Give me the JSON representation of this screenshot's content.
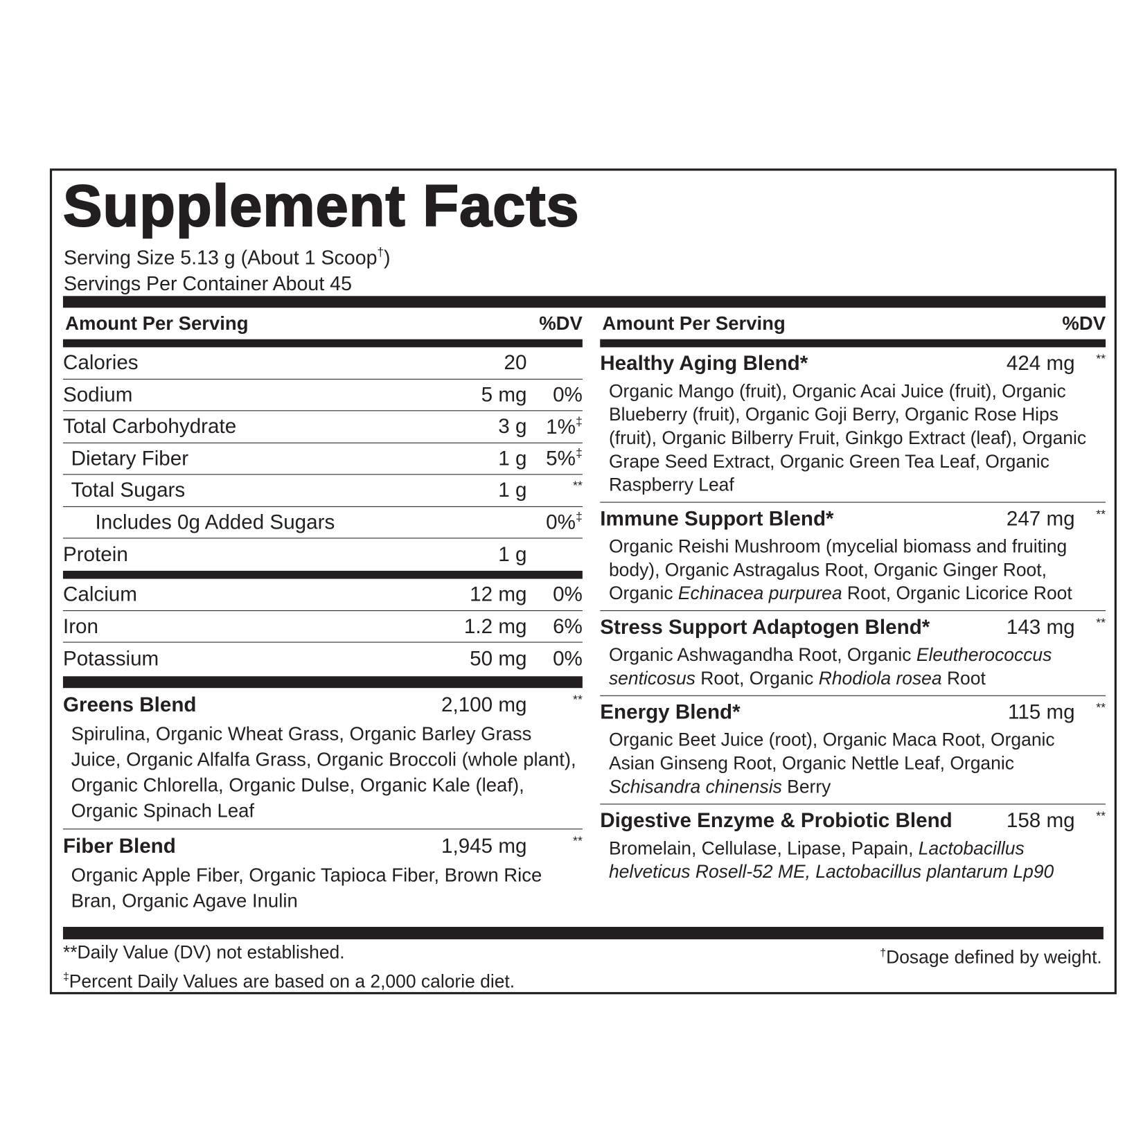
{
  "title": "Supplement Facts",
  "serving": [
    [
      {
        "text": "Serving Size 5.13 g (About 1 Scoop"
      },
      {
        "text": "†",
        "style": "sup"
      },
      {
        "text": ")"
      }
    ],
    [
      {
        "text": "Servings Per Container About 45"
      }
    ]
  ],
  "left": {
    "header": {
      "amount": "Amount Per Serving",
      "dv": "%DV"
    },
    "nutrients": [
      {
        "name": "Calories",
        "amount": "20"
      },
      {
        "name": "Sodium",
        "amount": "5 mg",
        "dv": [
          {
            "text": "0%"
          }
        ]
      },
      {
        "name": "Total Carbohydrate",
        "amount": "3 g",
        "dv": [
          {
            "text": "1%"
          },
          {
            "text": "‡",
            "style": "sup"
          }
        ]
      },
      {
        "name": "Dietary Fiber",
        "indent": 1,
        "amount": "1 g",
        "dv": [
          {
            "text": "5%"
          },
          {
            "text": "‡",
            "style": "sup"
          }
        ]
      },
      {
        "name": "Total Sugars",
        "indent": 1,
        "amount": "1 g",
        "dv": [
          {
            "text": "**",
            "style": "sup"
          }
        ]
      },
      {
        "name": "Includes 0g Added Sugars",
        "indent": 2,
        "dv": [
          {
            "text": "0%"
          },
          {
            "text": "‡",
            "style": "sup"
          }
        ]
      },
      {
        "name": "Protein",
        "amount": "1 g"
      }
    ],
    "minerals": [
      {
        "name": "Calcium",
        "amount": "12 mg",
        "dv": [
          {
            "text": "0%"
          }
        ]
      },
      {
        "name": "Iron",
        "amount": "1.2 mg",
        "dv": [
          {
            "text": "6%"
          }
        ]
      },
      {
        "name": "Potassium",
        "amount": "50 mg",
        "dv": [
          {
            "text": "0%"
          }
        ]
      }
    ],
    "blends": [
      {
        "name": "Greens Blend",
        "amount": "2,100 mg",
        "dv": [
          {
            "text": "**",
            "style": "sup"
          }
        ],
        "ingredients": [
          {
            "text": "Spirulina, Organic Wheat Grass, Organic Barley Grass Juice, Organic Alfalfa Grass, Organic Broccoli (whole plant), Organic Chlorella, Organic Dulse, Organic Kale (leaf), Organic Spinach Leaf"
          }
        ]
      },
      {
        "name": "Fiber Blend",
        "amount": "1,945 mg",
        "dv": [
          {
            "text": "**",
            "style": "sup"
          }
        ],
        "ingredients": [
          {
            "text": "Organic Apple Fiber, Organic Tapioca Fiber, Brown Rice Bran, Organic Agave Inulin"
          }
        ]
      }
    ]
  },
  "right": {
    "header": {
      "amount": "Amount Per Serving",
      "dv": "%DV"
    },
    "blends": [
      {
        "name": "Healthy Aging Blend*",
        "amount": "424 mg",
        "dv": [
          {
            "text": "**",
            "style": "sup"
          }
        ],
        "ingredients": [
          {
            "text": "Organic Mango (fruit), Organic Acai Juice (fruit), Organic Blueberry (fruit), Organic Goji Berry, Organic Rose Hips (fruit), Organic Bilberry Fruit, Ginkgo Extract (leaf), Organic Grape Seed Extract, Organic Green Tea Leaf, Organic Raspberry Leaf"
          }
        ]
      },
      {
        "name": "Immune Support Blend*",
        "amount": "247 mg",
        "dv": [
          {
            "text": "**",
            "style": "sup"
          }
        ],
        "ingredients": [
          {
            "text": "Organic Reishi Mushroom (mycelial biomass and fruiting body), Organic Astragalus Root, Organic Ginger Root, Organic "
          },
          {
            "text": "Echinacea purpurea",
            "style": "italic"
          },
          {
            "text": " Root, Organic Licorice Root"
          }
        ]
      },
      {
        "name": "Stress Support Adaptogen Blend*",
        "amount": "143 mg",
        "dv": [
          {
            "text": "**",
            "style": "sup"
          }
        ],
        "ingredients": [
          {
            "text": "Organic Ashwagandha Root, Organic "
          },
          {
            "text": "Eleutherococcus senticosus",
            "style": "italic"
          },
          {
            "text": " Root, Organic "
          },
          {
            "text": "Rhodiola rosea",
            "style": "italic"
          },
          {
            "text": " Root"
          }
        ]
      },
      {
        "name": "Energy Blend*",
        "amount": "115 mg",
        "dv": [
          {
            "text": "**",
            "style": "sup"
          }
        ],
        "ingredients": [
          {
            "text": "Organic Beet Juice (root), Organic Maca Root, Organic Asian Ginseng Root, Organic Nettle Leaf, Organic "
          },
          {
            "text": "Schisandra chinensis",
            "style": "italic"
          },
          {
            "text": " Berry"
          }
        ]
      },
      {
        "name": "Digestive Enzyme & Probiotic Blend",
        "amount": "158 mg",
        "dv": [
          {
            "text": "**",
            "style": "sup"
          }
        ],
        "ingredients": [
          {
            "text": "Bromelain, Cellulase, Lipase, Papain, "
          },
          {
            "text": "Lactobacillus helveticus Rosell-52 ME, Lactobacillus plantarum Lp90",
            "style": "italic"
          }
        ]
      }
    ]
  },
  "footnotes": {
    "left": [
      [
        {
          "text": "**Daily Value (DV) not established."
        }
      ],
      [
        {
          "text": "‡",
          "style": "sup"
        },
        {
          "text": "Percent Daily Values are based on a 2,000 calorie diet."
        }
      ]
    ],
    "right": [
      [
        {
          "text": "†",
          "style": "sup"
        },
        {
          "text": "Dosage defined by weight."
        }
      ]
    ]
  }
}
